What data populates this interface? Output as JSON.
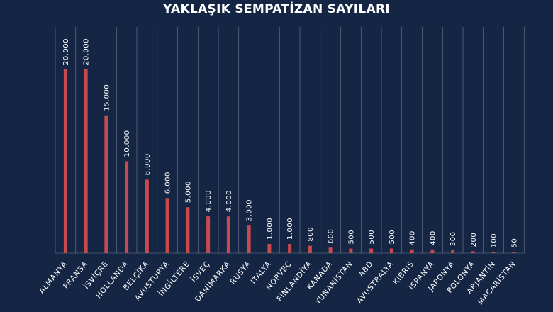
{
  "chart_data": {
    "type": "bar",
    "title": "YAKLAŞIK SEMPATİZAN SAYILARI",
    "xlabel": "",
    "ylabel": "",
    "categories": [
      "ALMANYA",
      "FRANSA",
      "İSVİÇRE",
      "HOLLANDA",
      "BELÇİKA",
      "AVUSTURYA",
      "İNGİLTERE",
      "İSVEÇ",
      "DANİMARKA",
      "RUSYA",
      "İTALYA",
      "NORVEÇ",
      "FİNLANDİYA",
      "KANADA",
      "YUNANİSTAN",
      "ABD",
      "AVUSTRALYA",
      "KIBRIS",
      "İSPANYA",
      "JAPONYA",
      "POLONYA",
      "ARJANTİN",
      "MACARİSTAN"
    ],
    "values": [
      20000,
      20000,
      15000,
      10000,
      8000,
      6000,
      5000,
      4000,
      4000,
      3000,
      1000,
      1000,
      800,
      600,
      500,
      500,
      500,
      400,
      400,
      300,
      200,
      100,
      50
    ],
    "value_labels": [
      "20.000",
      "20.000",
      "15.000",
      "10.000",
      "8.000",
      "6.000",
      "5.000",
      "4.000",
      "4.000",
      "3.000",
      "1.000",
      "1.000",
      "800",
      "600",
      "500",
      "500",
      "500",
      "400",
      "400",
      "300",
      "200",
      "100",
      "50"
    ],
    "ylim": [
      0,
      20000
    ],
    "grid": "vertical",
    "legend": "none",
    "colors": {
      "background": "#152645",
      "bar": "#c94a4d",
      "grid": "#8d97a8",
      "text": "#ffffff"
    }
  }
}
